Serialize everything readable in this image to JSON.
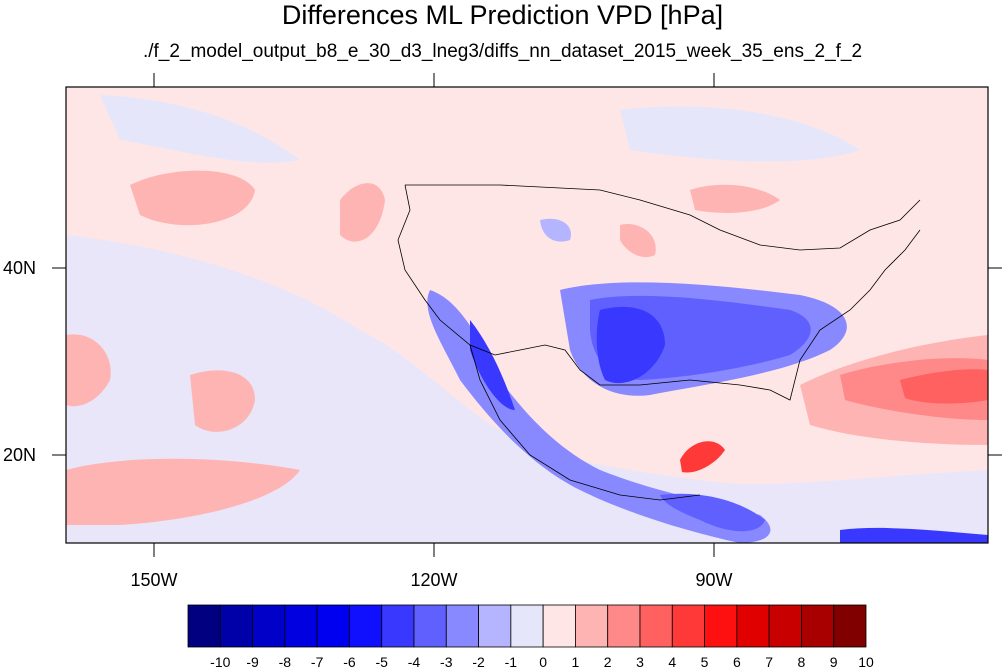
{
  "header": {
    "title": "Differences ML Prediction VPD [hPa]",
    "subtitle": "./f_2_model_output_b8_e_30_d3_lneg3/diffs_nn_dataset_2015_week_35_ens_2_f_2"
  },
  "axes": {
    "lat_labels": [
      "40N",
      "20N"
    ],
    "lon_labels": [
      "150W",
      "120W",
      "90W"
    ]
  },
  "colorbar": {
    "colors": [
      "#000080",
      "#0000a8",
      "#0000c8",
      "#0000e0",
      "#0000f0",
      "#1010ff",
      "#3838ff",
      "#6060ff",
      "#8888ff",
      "#b4b4ff",
      "#e6e6fa",
      "#ffe6e6",
      "#ffb4b4",
      "#ff8888",
      "#ff6060",
      "#ff3838",
      "#ff1010",
      "#e00000",
      "#c80000",
      "#a80000",
      "#800000"
    ],
    "labels": [
      "-10",
      "-9",
      "-8",
      "-7",
      "-6",
      "-5",
      "-4",
      "-3",
      "-2",
      "-1",
      "0",
      "1",
      "2",
      "3",
      "4",
      "5",
      "6",
      "7",
      "8",
      "9",
      "10"
    ]
  }
}
